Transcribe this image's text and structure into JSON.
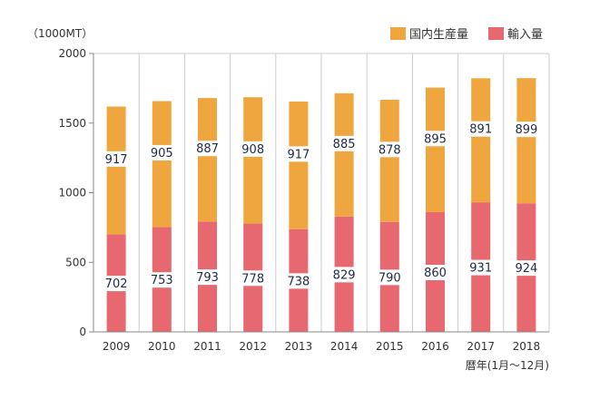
{
  "chart_data": {
    "type": "bar",
    "stacked": true,
    "title": "",
    "unit_label": "（1000MT）",
    "xlabel": "暦年(1月〜12月)",
    "ylabel": "",
    "categories": [
      "2009",
      "2010",
      "2011",
      "2012",
      "2013",
      "2014",
      "2015",
      "2016",
      "2017",
      "2018"
    ],
    "ylim": [
      0,
      2000
    ],
    "yticks": [
      0,
      500,
      1000,
      1500,
      2000
    ],
    "grid": "vertical",
    "legend_position": "top-right",
    "series": [
      {
        "name": "輸入量",
        "color": "#e8686f",
        "values": [
          702,
          753,
          793,
          778,
          738,
          829,
          790,
          860,
          931,
          924
        ]
      },
      {
        "name": "国内生産量",
        "color": "#f0a63e",
        "values": [
          917,
          905,
          887,
          908,
          917,
          885,
          878,
          895,
          891,
          899
        ]
      }
    ],
    "legend_order": [
      1,
      0
    ]
  }
}
